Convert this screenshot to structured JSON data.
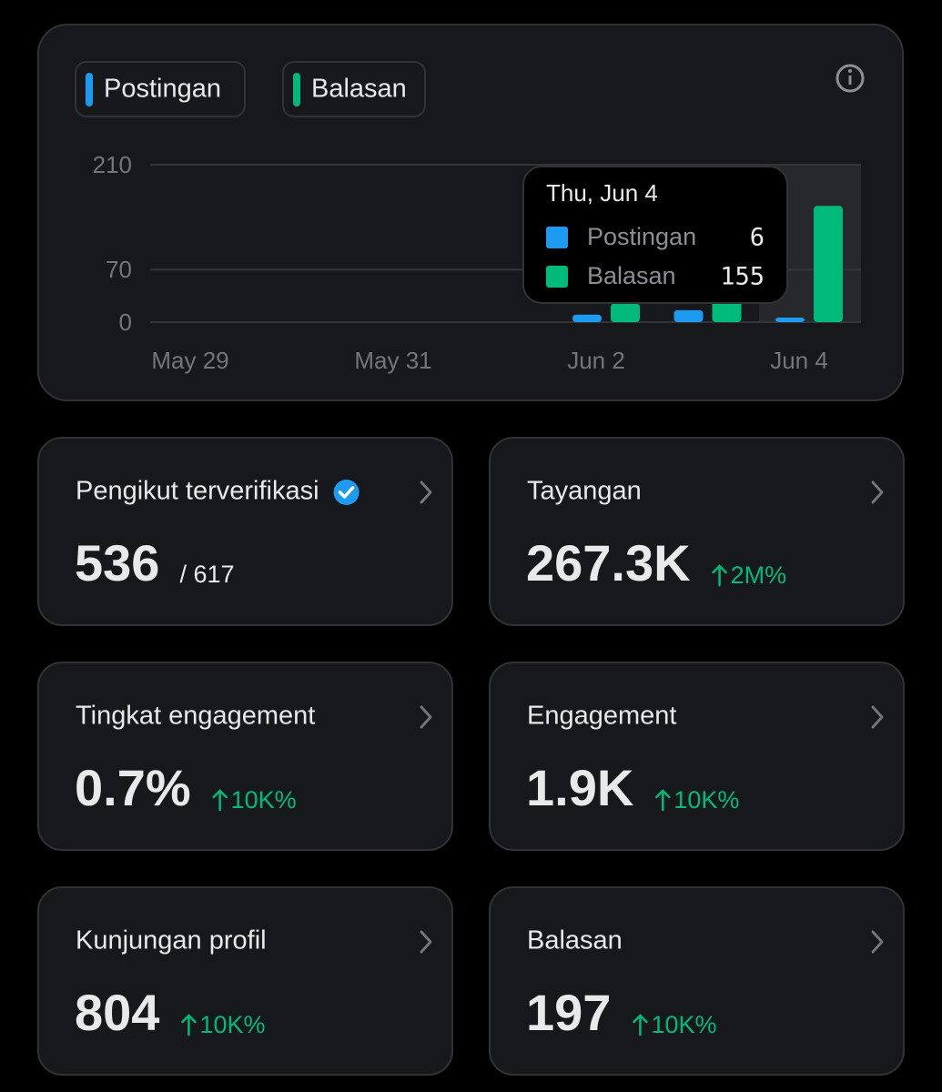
{
  "chart_data": {
    "type": "bar",
    "categories": [
      "May 29",
      null,
      "May 31",
      null,
      "Jun 2",
      null,
      "Jun 4"
    ],
    "series": [
      {
        "name": "Postingan",
        "color": "#1d9bf0",
        "values": [
          0,
          0,
          0,
          0,
          10,
          16,
          6
        ]
      },
      {
        "name": "Balasan",
        "color": "#00ba7c",
        "values": [
          0,
          0,
          0,
          0,
          25,
          29,
          155
        ]
      }
    ],
    "ylim": [
      0,
      210
    ],
    "yticks": [
      0,
      70,
      210
    ],
    "grid": true,
    "tooltip": {
      "title": "Thu, Jun 4"
    }
  },
  "cards": [
    {
      "title": "Pengikut terverifikasi",
      "value": "536",
      "total": "/ 617"
    },
    {
      "title": "Tayangan",
      "value": "267.3K",
      "change": "2M%"
    },
    {
      "title": "Tingkat engagement",
      "value": "0.7%",
      "change": "10K%"
    },
    {
      "title": "Engagement",
      "value": "1.9K",
      "change": "10K%"
    },
    {
      "title": "Kunjungan profil",
      "value": "804",
      "change": "10K%"
    },
    {
      "title": "Balasan",
      "value": "197",
      "change": "10K%"
    }
  ]
}
